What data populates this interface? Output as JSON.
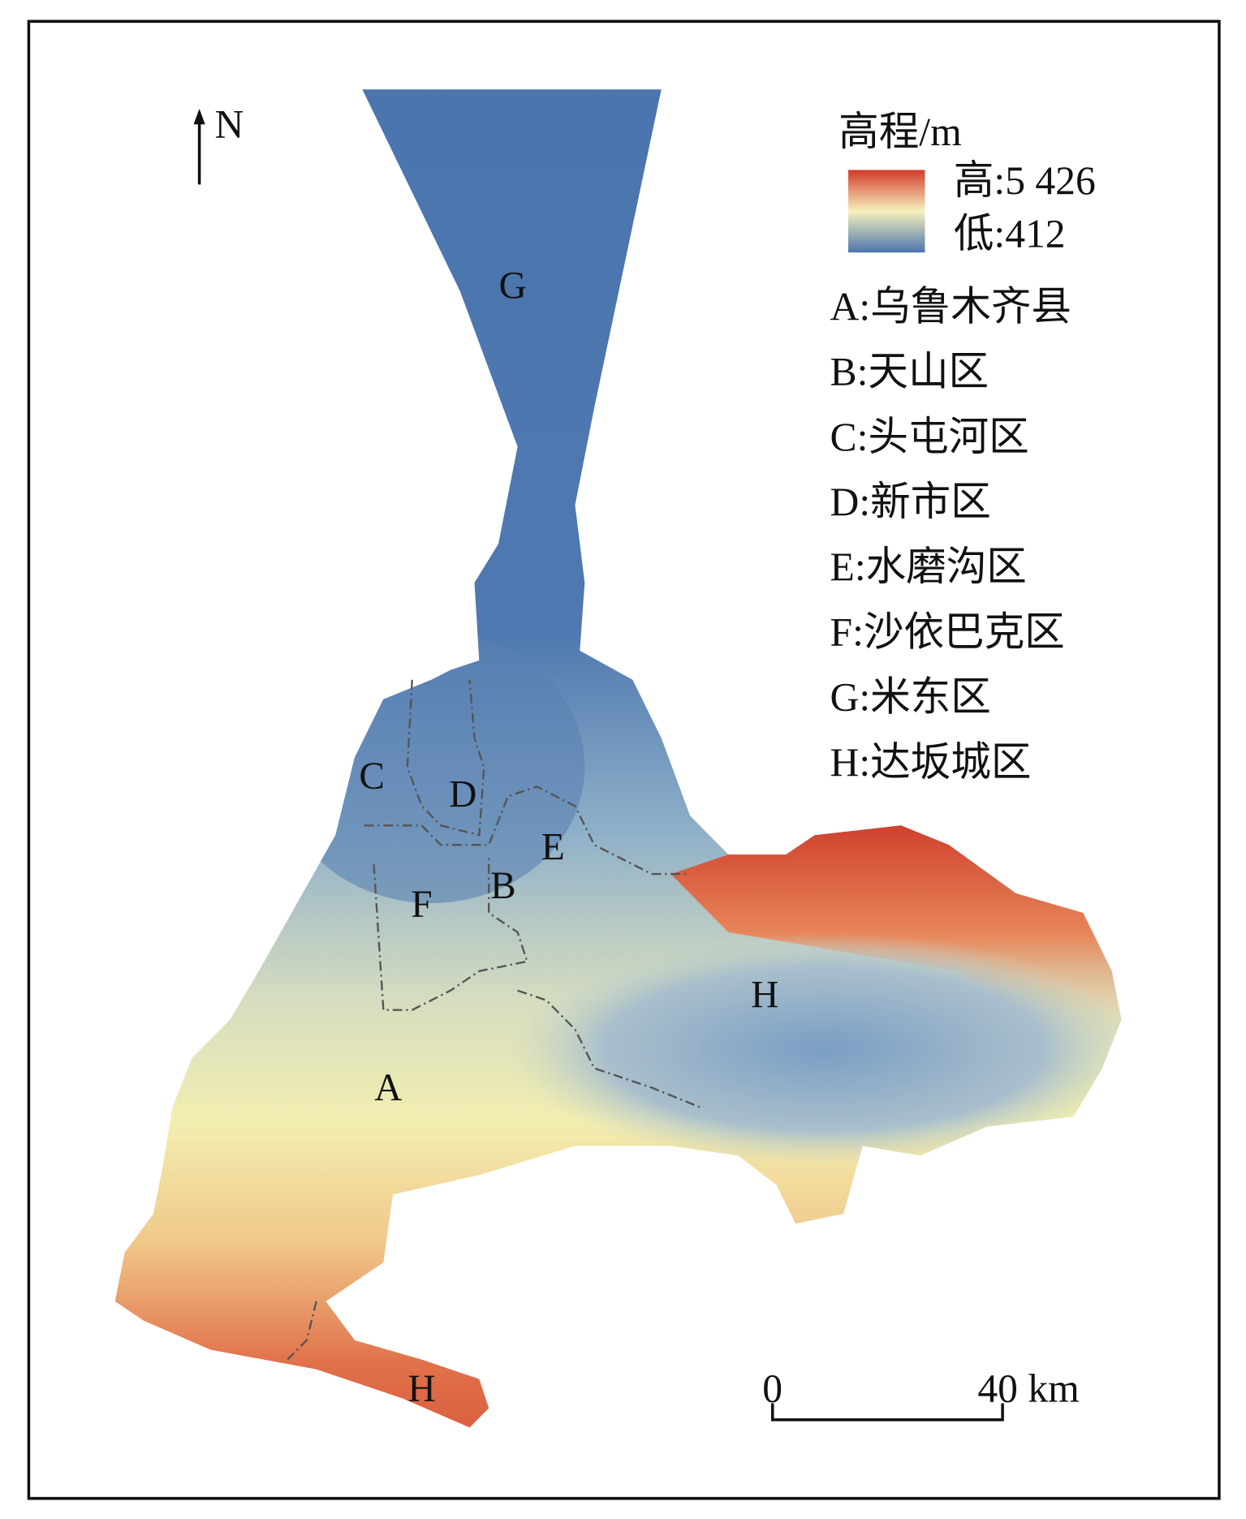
{
  "map": {
    "north": "N",
    "legend": {
      "title": "高程/m",
      "high": "高:5 426",
      "low": "低:412"
    },
    "regions": [
      "A:乌鲁木齐县",
      "B:天山区",
      "C:头屯河区",
      "D:新市区",
      "E:水磨沟区",
      "F:沙依巴克区",
      "G:米东区",
      "H:达坂城区"
    ],
    "labels": [
      "G",
      "C",
      "D",
      "E",
      "F",
      "B",
      "H",
      "A",
      "H"
    ],
    "scale": {
      "start": "0",
      "end": "40 km"
    }
  }
}
